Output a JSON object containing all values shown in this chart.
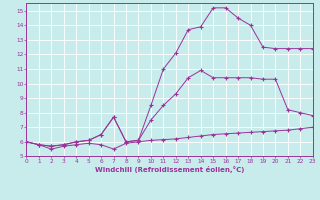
{
  "xlabel": "Windchill (Refroidissement éolien,°C)",
  "xlim": [
    0,
    23
  ],
  "ylim": [
    5,
    15.5
  ],
  "yticks": [
    5,
    6,
    7,
    8,
    9,
    10,
    11,
    12,
    13,
    14,
    15
  ],
  "xticks": [
    0,
    1,
    2,
    3,
    4,
    5,
    6,
    7,
    8,
    9,
    10,
    11,
    12,
    13,
    14,
    15,
    16,
    17,
    18,
    19,
    20,
    21,
    22,
    23
  ],
  "background_color": "#c8ecec",
  "grid_color": "#ffffff",
  "line_color": "#993399",
  "line1_x": [
    0,
    1,
    2,
    3,
    4,
    5,
    6,
    7,
    8,
    9,
    10,
    11,
    12,
    13,
    14,
    15,
    16,
    17,
    18,
    19,
    20,
    21,
    22,
    23
  ],
  "line1_y": [
    6.0,
    5.8,
    5.5,
    5.7,
    5.8,
    5.9,
    5.8,
    5.5,
    5.9,
    6.0,
    6.1,
    6.15,
    6.2,
    6.3,
    6.4,
    6.5,
    6.55,
    6.6,
    6.65,
    6.7,
    6.75,
    6.8,
    6.9,
    7.0
  ],
  "line2_x": [
    0,
    1,
    2,
    3,
    4,
    5,
    6,
    7,
    8,
    9,
    10,
    11,
    12,
    13,
    14,
    15,
    16,
    17,
    18,
    19,
    20,
    21,
    22,
    23
  ],
  "line2_y": [
    6.0,
    5.8,
    5.7,
    5.8,
    6.0,
    6.1,
    6.5,
    7.7,
    6.0,
    6.1,
    7.5,
    8.5,
    9.3,
    10.4,
    10.9,
    10.4,
    10.4,
    10.4,
    10.4,
    10.3,
    10.3,
    8.2,
    8.0,
    7.8
  ],
  "line3_x": [
    0,
    1,
    2,
    3,
    4,
    5,
    6,
    7,
    8,
    9,
    10,
    11,
    12,
    13,
    14,
    15,
    16,
    17,
    18,
    19,
    20,
    21,
    22,
    23
  ],
  "line3_y": [
    6.0,
    5.8,
    5.7,
    5.8,
    6.0,
    6.1,
    6.5,
    7.7,
    6.0,
    6.1,
    8.5,
    11.0,
    12.1,
    13.7,
    13.9,
    15.2,
    15.2,
    14.5,
    14.0,
    12.5,
    12.4,
    12.4,
    12.4,
    12.4
  ]
}
